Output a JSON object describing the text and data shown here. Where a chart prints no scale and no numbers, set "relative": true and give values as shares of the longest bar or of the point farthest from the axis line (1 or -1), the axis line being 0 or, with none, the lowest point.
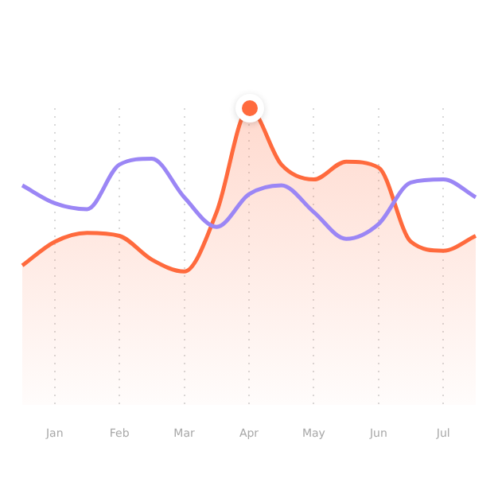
{
  "chart_data": {
    "type": "line",
    "relative": true,
    "grid": "x",
    "legend": false,
    "marker": "none",
    "categories": [
      null,
      "Jan",
      null,
      "Feb",
      null,
      "Mar",
      null,
      "Apr",
      null,
      "May",
      null,
      "Jun",
      null,
      "Jul",
      null
    ],
    "series": [
      {
        "type": "area",
        "color": "#ff6a3d",
        "values": [
          0.47,
          0.55,
          0.58,
          0.57,
          0.49,
          0.45,
          0.65,
          1,
          0.81,
          0.76,
          0.82,
          0.8,
          0.55,
          0.52,
          0.57
        ]
      },
      {
        "type": "line",
        "color": "#9b86f5",
        "values": [
          0.74,
          0.68,
          0.66,
          0.81,
          0.83,
          0.7,
          0.6,
          0.71,
          0.74,
          0.65,
          0.56,
          0.61,
          0.75,
          0.76,
          0.7
        ]
      }
    ]
  }
}
